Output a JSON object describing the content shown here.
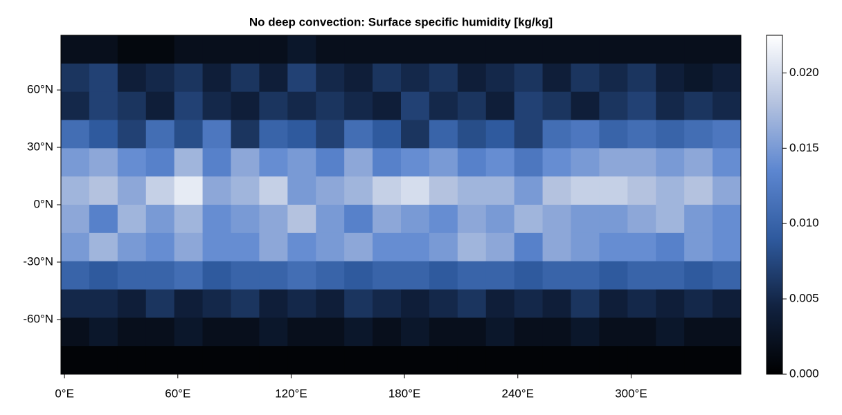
{
  "chart_data": {
    "type": "heatmap",
    "title": "No deep convection: Surface specific humidity [kg/kg]",
    "xlim": [
      -1.875,
      358.125
    ],
    "ylim": [
      -88.6,
      88.6
    ],
    "xticks": [
      {
        "value": 0,
        "label": "0°E"
      },
      {
        "value": 60,
        "label": "60°E"
      },
      {
        "value": 120,
        "label": "120°E"
      },
      {
        "value": 180,
        "label": "180°E"
      },
      {
        "value": 240,
        "label": "240°E"
      },
      {
        "value": 300,
        "label": "300°E"
      }
    ],
    "yticks": [
      {
        "value": -60,
        "label": "-60°N"
      },
      {
        "value": -30,
        "label": "-30°N"
      },
      {
        "value": 0,
        "label": "0°N"
      },
      {
        "value": 30,
        "label": "30°N"
      },
      {
        "value": 60,
        "label": "60°N"
      }
    ],
    "colormap": [
      "#000000",
      "#112240",
      "#2f5a9e",
      "#5c86d0",
      "#b4c2df",
      "#ffffff"
    ],
    "clim": [
      0,
      0.0225
    ],
    "cticks": [
      {
        "value": 0,
        "label": "0.000"
      },
      {
        "value": 0.005,
        "label": "0.005"
      },
      {
        "value": 0.01,
        "label": "0.010"
      },
      {
        "value": 0.015,
        "label": "0.015"
      },
      {
        "value": 0.02,
        "label": "0.020"
      }
    ],
    "z": [
      [
        0.002,
        0.002,
        0.001,
        0.001,
        0.002,
        0.002,
        0.002,
        0.002,
        0.003,
        0.002,
        0.002,
        0.002,
        0.002,
        0.002,
        0.002,
        0.002,
        0.002,
        0.002,
        0.002,
        0.002,
        0.002,
        0.002,
        0.002,
        0.002
      ],
      [
        0.006,
        0.007,
        0.004,
        0.005,
        0.006,
        0.004,
        0.006,
        0.004,
        0.007,
        0.005,
        0.004,
        0.006,
        0.005,
        0.006,
        0.004,
        0.005,
        0.006,
        0.004,
        0.006,
        0.005,
        0.006,
        0.004,
        0.003,
        0.004
      ],
      [
        0.005,
        0.007,
        0.006,
        0.004,
        0.007,
        0.005,
        0.004,
        0.006,
        0.005,
        0.006,
        0.005,
        0.004,
        0.007,
        0.005,
        0.006,
        0.004,
        0.007,
        0.006,
        0.004,
        0.006,
        0.007,
        0.005,
        0.006,
        0.005
      ],
      [
        0.011,
        0.009,
        0.007,
        0.011,
        0.008,
        0.012,
        0.006,
        0.01,
        0.009,
        0.007,
        0.011,
        0.009,
        0.006,
        0.01,
        0.008,
        0.009,
        0.007,
        0.011,
        0.012,
        0.01,
        0.011,
        0.01,
        0.011,
        0.012
      ],
      [
        0.015,
        0.016,
        0.014,
        0.013,
        0.017,
        0.013,
        0.016,
        0.014,
        0.015,
        0.013,
        0.016,
        0.013,
        0.014,
        0.015,
        0.013,
        0.014,
        0.012,
        0.014,
        0.015,
        0.016,
        0.016,
        0.015,
        0.016,
        0.014
      ],
      [
        0.017,
        0.018,
        0.016,
        0.019,
        0.021,
        0.016,
        0.017,
        0.019,
        0.015,
        0.016,
        0.017,
        0.019,
        0.02,
        0.018,
        0.017,
        0.017,
        0.015,
        0.018,
        0.019,
        0.019,
        0.018,
        0.017,
        0.018,
        0.016
      ],
      [
        0.016,
        0.013,
        0.017,
        0.015,
        0.017,
        0.014,
        0.015,
        0.016,
        0.018,
        0.015,
        0.013,
        0.016,
        0.015,
        0.014,
        0.016,
        0.015,
        0.017,
        0.016,
        0.015,
        0.015,
        0.016,
        0.017,
        0.015,
        0.014
      ],
      [
        0.015,
        0.017,
        0.015,
        0.014,
        0.016,
        0.014,
        0.014,
        0.016,
        0.014,
        0.015,
        0.016,
        0.014,
        0.014,
        0.015,
        0.017,
        0.016,
        0.013,
        0.016,
        0.015,
        0.014,
        0.014,
        0.013,
        0.015,
        0.014
      ],
      [
        0.01,
        0.009,
        0.01,
        0.01,
        0.011,
        0.009,
        0.01,
        0.01,
        0.011,
        0.01,
        0.009,
        0.01,
        0.01,
        0.009,
        0.01,
        0.01,
        0.009,
        0.01,
        0.01,
        0.009,
        0.01,
        0.01,
        0.009,
        0.01
      ],
      [
        0.005,
        0.005,
        0.004,
        0.006,
        0.004,
        0.005,
        0.006,
        0.004,
        0.005,
        0.004,
        0.006,
        0.005,
        0.004,
        0.005,
        0.006,
        0.004,
        0.005,
        0.004,
        0.006,
        0.004,
        0.005,
        0.004,
        0.005,
        0.004
      ],
      [
        0.002,
        0.003,
        0.002,
        0.002,
        0.003,
        0.002,
        0.002,
        0.003,
        0.002,
        0.002,
        0.003,
        0.002,
        0.003,
        0.002,
        0.002,
        0.003,
        0.002,
        0.002,
        0.003,
        0.002,
        0.002,
        0.003,
        0.002,
        0.002
      ],
      [
        0.0005,
        0.0005,
        0.0005,
        0.0005,
        0.0005,
        0.0005,
        0.0005,
        0.0005,
        0.0005,
        0.0005,
        0.0005,
        0.0005,
        0.0005,
        0.0005,
        0.0005,
        0.0005,
        0.0005,
        0.0005,
        0.0005,
        0.0005,
        0.0005,
        0.0005,
        0.0005,
        0.0005
      ]
    ]
  }
}
